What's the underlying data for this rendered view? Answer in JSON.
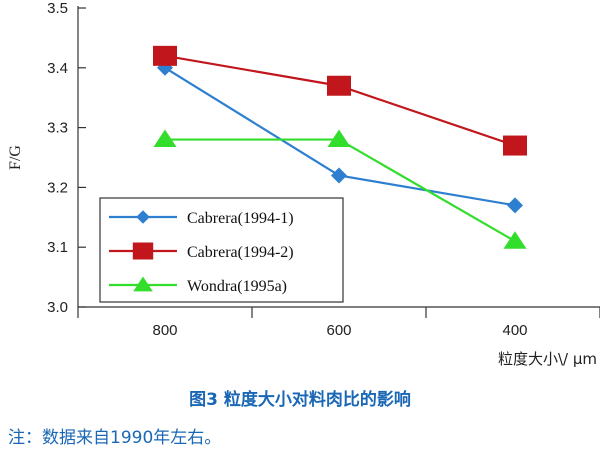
{
  "chart_data": {
    "type": "line",
    "title": "",
    "xlabel": "粒度大小\\/ μm",
    "ylabel": "F/G",
    "categories": [
      "800",
      "600",
      "400"
    ],
    "ylim": [
      3.0,
      3.5
    ],
    "yticks": [
      "3.0",
      "3.1",
      "3.2",
      "3.3",
      "3.4",
      "3.5"
    ],
    "grid": false,
    "legend_position": "bottom-left",
    "series": [
      {
        "name": "Cabrera(1994-1)",
        "marker": "diamond",
        "color": "#2e7fd0",
        "values": [
          3.4,
          3.22,
          3.17
        ]
      },
      {
        "name": "Cabrera(1994-2)",
        "marker": "square",
        "color": "#c0161c",
        "values": [
          3.42,
          3.37,
          3.27
        ]
      },
      {
        "name": "Wondra(1995a)",
        "marker": "triangle",
        "color": "#33dd2c",
        "values": [
          3.28,
          3.28,
          3.11
        ]
      }
    ]
  },
  "caption": "图3   粒度大小对料肉比的影响",
  "note": "注：数据来自1990年左右。"
}
